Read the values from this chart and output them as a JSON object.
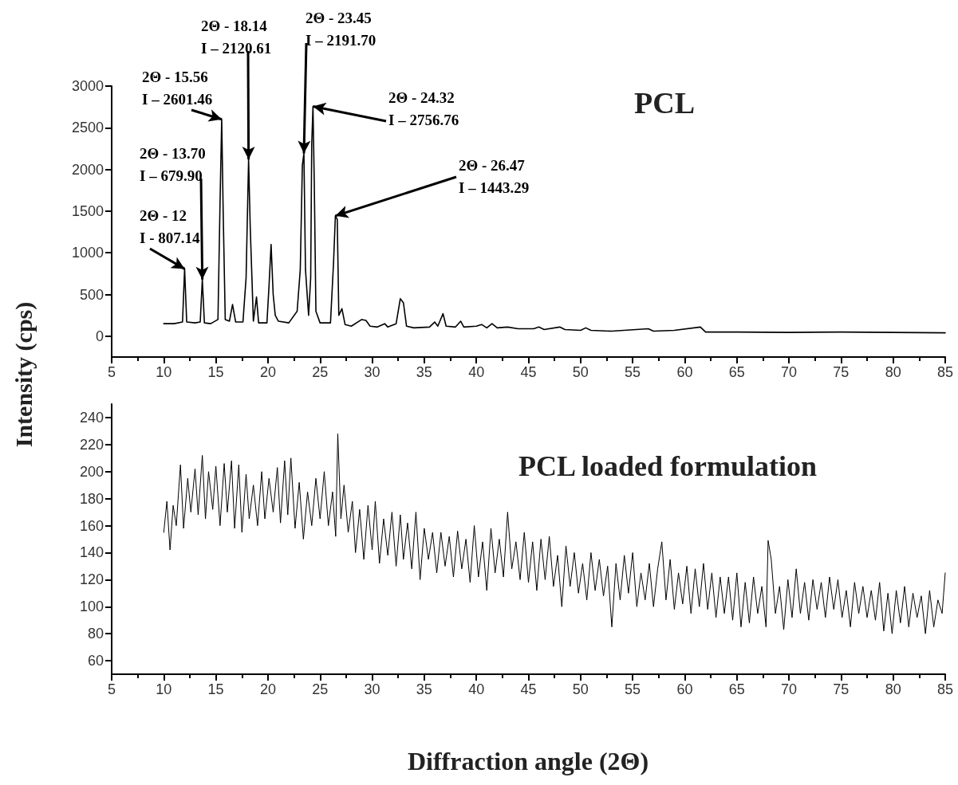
{
  "chart_data": [
    {
      "type": "line",
      "title": "PCL",
      "ylabel": "Intensity (cps)",
      "color": "#000000",
      "x": [
        10,
        11,
        11.8,
        12,
        12.2,
        13,
        13.5,
        13.7,
        13.9,
        14.5,
        15.2,
        15.4,
        15.56,
        15.7,
        15.9,
        16.3,
        16.6,
        16.9,
        17.6,
        17.9,
        18.14,
        18.3,
        18.6,
        18.9,
        19.1,
        19.9,
        20.1,
        20.3,
        20.5,
        20.7,
        21,
        22,
        22.8,
        23.1,
        23.3,
        23.45,
        23.6,
        23.9,
        24.1,
        24.2,
        24.32,
        24.45,
        24.6,
        25,
        26,
        26.3,
        26.47,
        26.65,
        26.8,
        27.1,
        27.4,
        28,
        29,
        29.4,
        29.8,
        30.5,
        31.2,
        31.5,
        32.3,
        32.7,
        33,
        33.3,
        34,
        35.5,
        36,
        36.3,
        36.8,
        37.1,
        38,
        38.5,
        38.8,
        40,
        40.5,
        41,
        41.5,
        42,
        43,
        44,
        45.5,
        46,
        46.5,
        48,
        48.5,
        50,
        50.5,
        51,
        53,
        56.5,
        57,
        59,
        61.5,
        62,
        65,
        70,
        75,
        80,
        85
      ],
      "values": [
        150,
        150,
        170,
        807.14,
        170,
        160,
        170,
        679.9,
        160,
        150,
        200,
        1600,
        2601.46,
        1500,
        200,
        180,
        380,
        170,
        170,
        700,
        2120.61,
        1300,
        180,
        470,
        160,
        160,
        600,
        1100,
        500,
        250,
        180,
        160,
        300,
        800,
        2050,
        2191.7,
        800,
        250,
        700,
        2300,
        2756.76,
        1800,
        300,
        160,
        160,
        900,
        1443.29,
        1400,
        250,
        330,
        140,
        120,
        200,
        190,
        120,
        110,
        150,
        110,
        150,
        450,
        400,
        120,
        100,
        110,
        170,
        120,
        270,
        120,
        110,
        180,
        110,
        120,
        140,
        100,
        150,
        100,
        110,
        90,
        90,
        110,
        80,
        110,
        80,
        70,
        100,
        70,
        60,
        90,
        60,
        70,
        110,
        50,
        50,
        45,
        50,
        45,
        40
      ],
      "xlim": [
        5,
        85
      ],
      "xticks": [
        5,
        10,
        15,
        20,
        25,
        30,
        35,
        40,
        45,
        50,
        55,
        60,
        65,
        70,
        75,
        80,
        85
      ],
      "ylim": [
        -250,
        3000
      ],
      "yticks": [
        0,
        500,
        1000,
        1500,
        2000,
        2500,
        3000
      ],
      "annotations": [
        {
          "text": "2Θ - 12\nI - 807.14",
          "x": 12,
          "y": 807.14
        },
        {
          "text": "2Θ - 13.70\nI – 679.90",
          "x": 13.7,
          "y": 679.9
        },
        {
          "text": "2Θ - 15.56\nI – 2601.46",
          "x": 15.56,
          "y": 2601.46
        },
        {
          "text": "2Θ - 18.14\nI – 2120.61",
          "x": 18.14,
          "y": 2120.61
        },
        {
          "text": "2Θ - 23.45\nI – 2191.70",
          "x": 23.45,
          "y": 2191.7
        },
        {
          "text": "2Θ - 24.32\nI – 2756.76",
          "x": 24.32,
          "y": 2756.76
        },
        {
          "text": "2Θ - 26.47\nI – 1443.29",
          "x": 26.47,
          "y": 1443.29
        }
      ]
    },
    {
      "type": "line",
      "title": "PCL loaded formulation",
      "xlabel": "Diffraction angle (2Θ)",
      "color": "#000000",
      "x": [
        10.0,
        10.3,
        10.6,
        10.9,
        11.2,
        11.6,
        11.9,
        12.3,
        12.6,
        13.0,
        13.3,
        13.7,
        14.0,
        14.3,
        14.7,
        15.0,
        15.4,
        15.8,
        16.1,
        16.5,
        16.8,
        17.2,
        17.5,
        17.9,
        18.2,
        18.6,
        19.0,
        19.4,
        19.7,
        20.1,
        20.5,
        20.9,
        21.2,
        21.6,
        21.9,
        22.2,
        22.6,
        23.0,
        23.4,
        23.8,
        24.2,
        24.6,
        25.0,
        25.4,
        25.8,
        26.2,
        26.5,
        26.7,
        27.0,
        27.3,
        27.7,
        28.1,
        28.4,
        28.8,
        29.2,
        29.6,
        30.0,
        30.3,
        30.7,
        31.1,
        31.5,
        31.9,
        32.3,
        32.7,
        33.0,
        33.4,
        33.8,
        34.2,
        34.6,
        35.0,
        35.4,
        35.8,
        36.2,
        36.6,
        37.0,
        37.4,
        37.8,
        38.2,
        38.6,
        39.0,
        39.4,
        39.8,
        40.2,
        40.6,
        41.0,
        41.4,
        41.8,
        42.2,
        42.6,
        43.0,
        43.4,
        43.8,
        44.2,
        44.6,
        45.0,
        45.4,
        45.8,
        46.2,
        46.6,
        47.0,
        47.4,
        47.8,
        48.2,
        48.6,
        49.0,
        49.4,
        49.8,
        50.2,
        50.6,
        51.0,
        51.4,
        51.8,
        52.2,
        52.6,
        53.0,
        53.4,
        53.8,
        54.2,
        54.6,
        55.0,
        55.4,
        55.8,
        56.2,
        56.6,
        57.0,
        57.4,
        57.8,
        58.2,
        58.6,
        59.0,
        59.4,
        59.8,
        60.2,
        60.6,
        61.0,
        61.4,
        61.8,
        62.2,
        62.6,
        63.0,
        63.4,
        63.8,
        64.2,
        64.6,
        65.0,
        65.4,
        65.8,
        66.2,
        66.6,
        67.0,
        67.4,
        67.8,
        68.0,
        68.3,
        68.7,
        69.1,
        69.5,
        69.9,
        70.3,
        70.7,
        71.1,
        71.5,
        71.9,
        72.3,
        72.7,
        73.1,
        73.5,
        73.9,
        74.3,
        74.7,
        75.1,
        75.5,
        75.9,
        76.3,
        76.7,
        77.1,
        77.5,
        77.9,
        78.3,
        78.7,
        79.1,
        79.5,
        79.9,
        80.3,
        80.7,
        81.1,
        81.5,
        81.9,
        82.3,
        82.7,
        83.1,
        83.5,
        83.9,
        84.3,
        84.7,
        85.0
      ],
      "values": [
        155,
        178,
        142,
        175,
        160,
        205,
        158,
        195,
        170,
        202,
        168,
        212,
        165,
        200,
        172,
        204,
        160,
        206,
        170,
        208,
        158,
        205,
        155,
        198,
        165,
        190,
        160,
        200,
        165,
        195,
        170,
        203,
        162,
        208,
        168,
        210,
        158,
        192,
        150,
        185,
        160,
        195,
        165,
        200,
        160,
        185,
        152,
        228,
        165,
        190,
        155,
        178,
        140,
        172,
        135,
        175,
        142,
        178,
        132,
        165,
        138,
        170,
        130,
        168,
        135,
        162,
        128,
        170,
        120,
        158,
        135,
        155,
        125,
        155,
        130,
        152,
        122,
        156,
        128,
        150,
        118,
        160,
        122,
        148,
        112,
        158,
        125,
        150,
        122,
        170,
        128,
        148,
        120,
        155,
        118,
        148,
        112,
        150,
        120,
        152,
        115,
        138,
        100,
        145,
        115,
        140,
        110,
        132,
        105,
        140,
        112,
        135,
        108,
        130,
        85,
        132,
        105,
        138,
        110,
        140,
        100,
        125,
        105,
        132,
        100,
        128,
        148,
        105,
        135,
        98,
        125,
        102,
        130,
        95,
        128,
        100,
        132,
        98,
        125,
        92,
        122,
        95,
        122,
        90,
        125,
        85,
        118,
        88,
        122,
        95,
        115,
        85,
        149,
        135,
        95,
        115,
        83,
        120,
        92,
        128,
        95,
        118,
        90,
        120,
        98,
        118,
        92,
        122,
        98,
        120,
        92,
        112,
        85,
        118,
        95,
        115,
        92,
        112,
        90,
        118,
        82,
        110,
        80,
        112,
        88,
        115,
        85,
        110,
        92,
        108,
        80,
        112,
        85,
        105,
        95,
        125
      ],
      "xlim": [
        5,
        85
      ],
      "xticks": [
        5,
        10,
        15,
        20,
        25,
        30,
        35,
        40,
        45,
        50,
        55,
        60,
        65,
        70,
        75,
        80,
        85
      ],
      "ylim": [
        50,
        250
      ],
      "yticks": [
        60,
        80,
        100,
        120,
        140,
        160,
        180,
        200,
        220,
        240
      ]
    }
  ]
}
